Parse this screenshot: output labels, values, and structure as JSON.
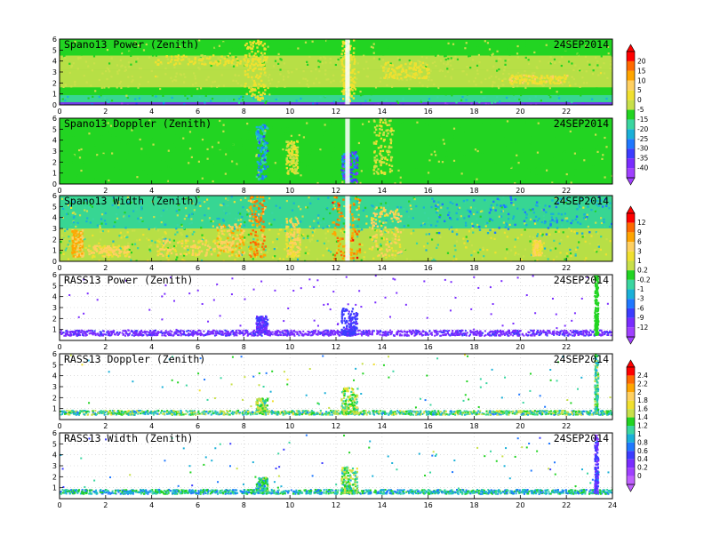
{
  "chart_data": [
    {
      "type": "heatmap",
      "title": "Spano13 Power (Zenith)",
      "date": "24SEP2014",
      "xlim": [
        0,
        24
      ],
      "ylim": [
        0,
        6
      ],
      "x_ticks": [
        "0",
        "2",
        "4",
        "6",
        "8",
        "10",
        "12",
        "14",
        "16",
        "18",
        "20",
        "22"
      ],
      "y_ticks": [
        "0",
        "1",
        "2",
        "3",
        "4",
        "5",
        "6"
      ],
      "background_color": "#22d422",
      "bands": [
        {
          "y": [
            0.0,
            0.25
          ],
          "x": [
            0,
            24
          ],
          "value": -37
        },
        {
          "y": [
            0.25,
            0.9
          ],
          "x": [
            0,
            24
          ],
          "value": -18
        },
        {
          "y": [
            0.9,
            1.6
          ],
          "x": [
            0,
            24
          ],
          "value": -8
        },
        {
          "y": [
            1.6,
            3.2
          ],
          "x": [
            0,
            24
          ],
          "value": -2
        },
        {
          "y": [
            3.2,
            4.5
          ],
          "x": [
            0,
            24
          ],
          "value": -4
        },
        {
          "y": [
            4.5,
            6.0
          ],
          "x": [
            0,
            24
          ],
          "value": -7
        }
      ],
      "features": [
        {
          "x": [
            8.0,
            8.9
          ],
          "y": [
            0.5,
            6.0
          ],
          "value": 3
        },
        {
          "x": [
            12.2,
            12.8
          ],
          "y": [
            0.4,
            6.0
          ],
          "value": 3
        },
        {
          "x": [
            4.0,
            9.0
          ],
          "y": [
            3.7,
            4.6
          ],
          "value": 1
        },
        {
          "x": [
            14.0,
            16.0
          ],
          "y": [
            2.5,
            4.0
          ],
          "value": 1
        },
        {
          "x": [
            19.5,
            22.0
          ],
          "y": [
            2.0,
            2.8
          ],
          "value": 4
        }
      ],
      "gap": {
        "x": [
          12.4,
          12.6
        ],
        "y": [
          0,
          6
        ]
      }
    },
    {
      "type": "heatmap",
      "title": "Spano13 Doppler (Zenith)",
      "date": "24SEP2014",
      "xlim": [
        0,
        24
      ],
      "ylim": [
        0,
        6
      ],
      "x_ticks": [
        "0",
        "2",
        "4",
        "6",
        "8",
        "10",
        "12",
        "14",
        "16",
        "18",
        "20",
        "22"
      ],
      "y_ticks": [
        "0",
        "1",
        "2",
        "3",
        "4",
        "5",
        "6"
      ],
      "background_color": "#22d422",
      "bands": [
        {
          "y": [
            0.0,
            6.0
          ],
          "x": [
            0,
            24
          ],
          "value": -8
        }
      ],
      "features": [
        {
          "x": [
            8.5,
            9.0
          ],
          "y": [
            0.5,
            5.5
          ],
          "value": -24
        },
        {
          "x": [
            12.2,
            12.9
          ],
          "y": [
            0.3,
            3.0
          ],
          "value": -32
        },
        {
          "x": [
            9.8,
            10.3
          ],
          "y": [
            1.0,
            4.0
          ],
          "value": 0
        },
        {
          "x": [
            13.6,
            14.4
          ],
          "y": [
            1.0,
            6.0
          ],
          "value": 0
        }
      ],
      "gap": {
        "x": [
          12.4,
          12.6
        ],
        "y": [
          0,
          6
        ]
      }
    },
    {
      "type": "heatmap",
      "title": "Spano13 Width (Zenith)",
      "date": "24SEP2014",
      "xlim": [
        0,
        24
      ],
      "ylim": [
        0,
        6
      ],
      "x_ticks": [
        "0",
        "2",
        "4",
        "6",
        "8",
        "10",
        "12",
        "14",
        "16",
        "18",
        "20",
        "22"
      ],
      "y_ticks": [
        "0",
        "1",
        "2",
        "3",
        "4",
        "5",
        "6"
      ],
      "background_color": "#22d422",
      "bands": [
        {
          "y": [
            0.0,
            3.0
          ],
          "x": [
            0,
            24
          ],
          "value": 0.5
        },
        {
          "y": [
            3.0,
            6.0
          ],
          "x": [
            0,
            24
          ],
          "value": -0.5
        }
      ],
      "features": [
        {
          "x": [
            0.5,
            1.0
          ],
          "y": [
            0.5,
            3.0
          ],
          "value": 6
        },
        {
          "x": [
            1.2,
            3.0
          ],
          "y": [
            0.5,
            1.5
          ],
          "value": 4
        },
        {
          "x": [
            4.2,
            7.5
          ],
          "y": [
            0.6,
            2.0
          ],
          "value": 4
        },
        {
          "x": [
            6.8,
            8.0
          ],
          "y": [
            0.5,
            3.5
          ],
          "value": 5
        },
        {
          "x": [
            8.2,
            8.9
          ],
          "y": [
            0.5,
            6.0
          ],
          "value": 8
        },
        {
          "x": [
            9.8,
            10.4
          ],
          "y": [
            0.5,
            4.0
          ],
          "value": 3
        },
        {
          "x": [
            11.8,
            13.0
          ],
          "y": [
            0.3,
            6.0
          ],
          "value": 9
        },
        {
          "x": [
            13.5,
            14.8
          ],
          "y": [
            0.5,
            5.0
          ],
          "value": 4
        },
        {
          "x": [
            20.5,
            20.9
          ],
          "y": [
            0.6,
            2.0
          ],
          "value": 3
        },
        {
          "x": [
            16.0,
            24.0
          ],
          "y": [
            2.5,
            6.0
          ],
          "value": -3
        }
      ],
      "gap": {
        "x": [
          12.4,
          12.6
        ],
        "y": [
          0,
          6
        ]
      }
    },
    {
      "type": "scatter",
      "title": "RASS13 Power (Zenith)",
      "date": "24SEP2014",
      "xlim": [
        0,
        24
      ],
      "ylim": [
        0,
        6
      ],
      "x_ticks": [
        "0",
        "2",
        "4",
        "6",
        "8",
        "10",
        "12",
        "14",
        "16",
        "18",
        "20",
        "22"
      ],
      "y_ticks": [
        "1",
        "2",
        "3",
        "4",
        "5",
        "6"
      ],
      "baseline_altitude": [
        0.5,
        1.0
      ],
      "baseline_value": -10,
      "features": [
        {
          "x": [
            8.5,
            9.0
          ],
          "y": [
            0.8,
            2.3
          ],
          "value": -9
        },
        {
          "x": [
            12.2,
            12.9
          ],
          "y": [
            0.6,
            3.0
          ],
          "value": -8
        },
        {
          "x": [
            23.2,
            23.35
          ],
          "y": [
            0.6,
            6.0
          ],
          "value": 0
        }
      ]
    },
    {
      "type": "scatter",
      "title": "RASS13 Doppler (Zenith)",
      "date": "24SEP2014",
      "xlim": [
        0,
        24
      ],
      "ylim": [
        0,
        6
      ],
      "x_ticks": [
        "0",
        "2",
        "4",
        "6",
        "8",
        "10",
        "12",
        "14",
        "16",
        "18",
        "20",
        "22"
      ],
      "y_ticks": [
        "1",
        "2",
        "3",
        "4",
        "5",
        "6"
      ],
      "baseline_altitude": [
        0.5,
        0.9
      ],
      "baseline_value": 1.2,
      "features": [
        {
          "x": [
            8.5,
            9.0
          ],
          "y": [
            0.8,
            2.0
          ],
          "value": 1.3
        },
        {
          "x": [
            12.2,
            12.9
          ],
          "y": [
            0.6,
            3.0
          ],
          "value": 1.4
        },
        {
          "x": [
            23.2,
            23.35
          ],
          "y": [
            0.6,
            6.0
          ],
          "value": 1.2
        }
      ]
    },
    {
      "type": "scatter",
      "title": "RASS13 Width (Zenith)",
      "date": "24SEP2014",
      "xlim": [
        0,
        24
      ],
      "ylim": [
        0,
        6
      ],
      "x_ticks": [
        "0",
        "2",
        "4",
        "6",
        "8",
        "10",
        "12",
        "14",
        "16",
        "18",
        "20",
        "22",
        "24"
      ],
      "y_ticks": [
        "1",
        "2",
        "3",
        "4",
        "5",
        "6"
      ],
      "baseline_altitude": [
        0.5,
        0.9
      ],
      "baseline_value": 1.0,
      "features": [
        {
          "x": [
            8.5,
            9.0
          ],
          "y": [
            0.8,
            2.0
          ],
          "value": 1.1
        },
        {
          "x": [
            12.2,
            12.9
          ],
          "y": [
            0.6,
            3.0
          ],
          "value": 1.3
        },
        {
          "x": [
            23.2,
            23.35
          ],
          "y": [
            0.6,
            6.0
          ],
          "value": 0.4
        }
      ]
    }
  ],
  "colorbars": [
    {
      "panels": [
        0,
        1
      ],
      "ticks": [
        "20",
        "15",
        "10",
        "5",
        "0",
        "-5",
        "-15",
        "-20",
        "-25",
        "-30",
        "-35",
        "-40"
      ],
      "colors": [
        "#ff0000",
        "#ff6a00",
        "#ffa500",
        "#ffd060",
        "#f0e030",
        "#c8e04a",
        "#22d422",
        "#3ad6a0",
        "#1ab0d8",
        "#1f78ff",
        "#3c3cff",
        "#7a2cff",
        "#a040ff"
      ]
    },
    {
      "panels": [
        2,
        3
      ],
      "ticks": [
        "12",
        "9",
        "6",
        "3",
        "1",
        "0.2",
        "-0.2",
        "-1",
        "-3",
        "-6",
        "-9",
        "-12"
      ],
      "colors": [
        "#ff0000",
        "#ff6a00",
        "#ffa500",
        "#ffd060",
        "#f0e030",
        "#c8e04a",
        "#22d422",
        "#3ad6a0",
        "#1ab0d8",
        "#1f78ff",
        "#3c3cff",
        "#7a2cff",
        "#a040ff"
      ]
    },
    {
      "panels": [
        4,
        5
      ],
      "ticks": [
        "2.4",
        "2.2",
        "2",
        "1.8",
        "1.6",
        "1.4",
        "1.2",
        "1",
        "0.8",
        "0.6",
        "0.4",
        "0.2",
        "0"
      ],
      "colors": [
        "#ff0000",
        "#ff6a00",
        "#ffa500",
        "#ffd060",
        "#f0e030",
        "#c8e04a",
        "#22d422",
        "#3ad6a0",
        "#1ab0d8",
        "#1f78ff",
        "#3c3cff",
        "#7a2cff",
        "#a040ff",
        "#c060ff"
      ]
    }
  ]
}
